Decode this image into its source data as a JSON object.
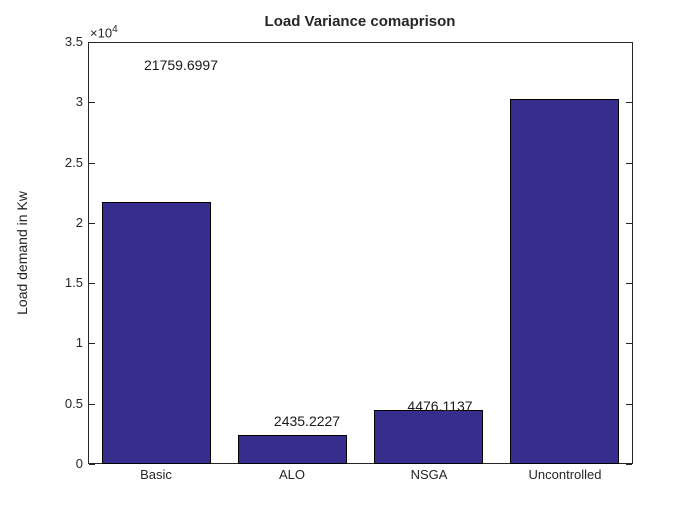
{
  "chart_data": {
    "type": "bar",
    "title": "Load Variance comaprison",
    "xlabel": "",
    "ylabel": "Load demand in Kw",
    "y_exponent_base": "×10",
    "y_exponent": "4",
    "categories": [
      "Basic",
      "ALO",
      "NSGA",
      "Uncontrolled"
    ],
    "values": [
      21759.6997,
      2435.2227,
      4476.1137,
      30250
    ],
    "bar_value_labels": [
      "21759.6997",
      "2435.2227",
      "4476.1137",
      ""
    ],
    "ylim": [
      0,
      35000
    ],
    "ytick_values": [
      0,
      5000,
      10000,
      15000,
      20000,
      25000,
      30000,
      35000
    ],
    "ytick_labels": [
      "0",
      "0.5",
      "1",
      "1.5",
      "2",
      "2.5",
      "3",
      "3.5"
    ],
    "legend": null,
    "grid": false,
    "bar_color": "#362d8c",
    "bar_edge_color": "#000000",
    "axis_color": "#262626",
    "background_color": "#ffffff"
  }
}
